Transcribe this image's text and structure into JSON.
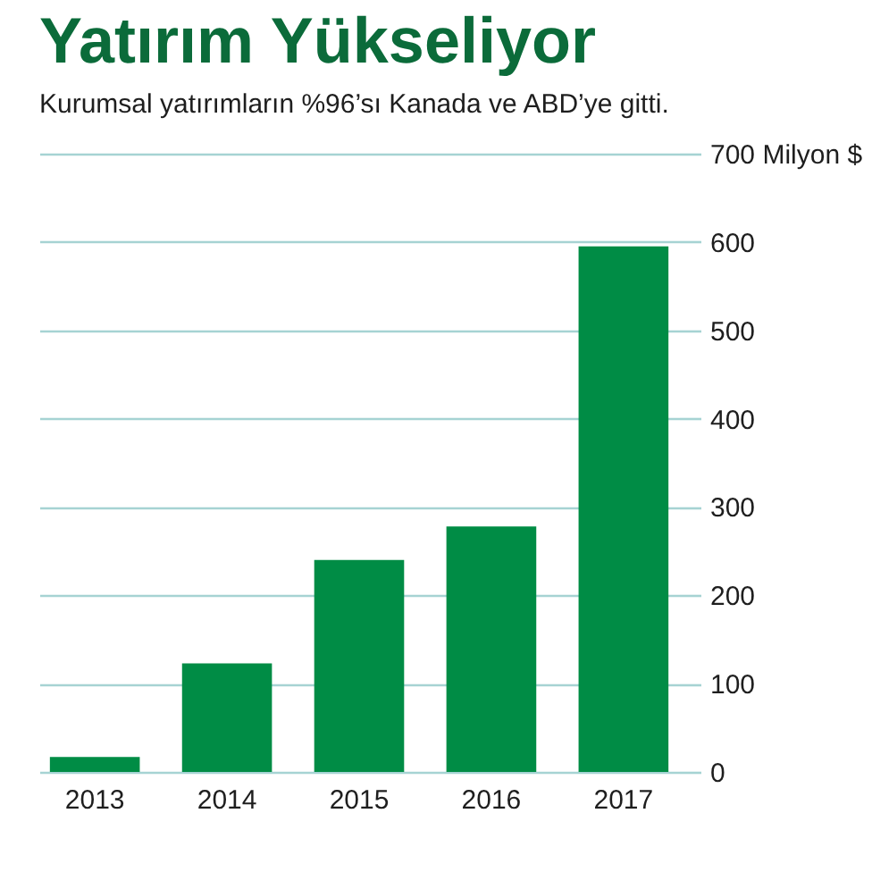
{
  "chart_data": {
    "type": "bar",
    "title": "Yatırım Yükseliyor",
    "subtitle": "Kurumsal yatırımların %96’sı Kanada ve ABD’ye gitti.",
    "categories": [
      "2013",
      "2014",
      "2015",
      "2016",
      "2017"
    ],
    "values": [
      17,
      123,
      240,
      278,
      595
    ],
    "color": "#008c45",
    "ylim": [
      0,
      700
    ],
    "yticks": [
      0,
      100,
      200,
      300,
      400,
      500,
      600,
      {
        "value": 700,
        "label": "700 Milyon $"
      }
    ],
    "grid": "y"
  }
}
